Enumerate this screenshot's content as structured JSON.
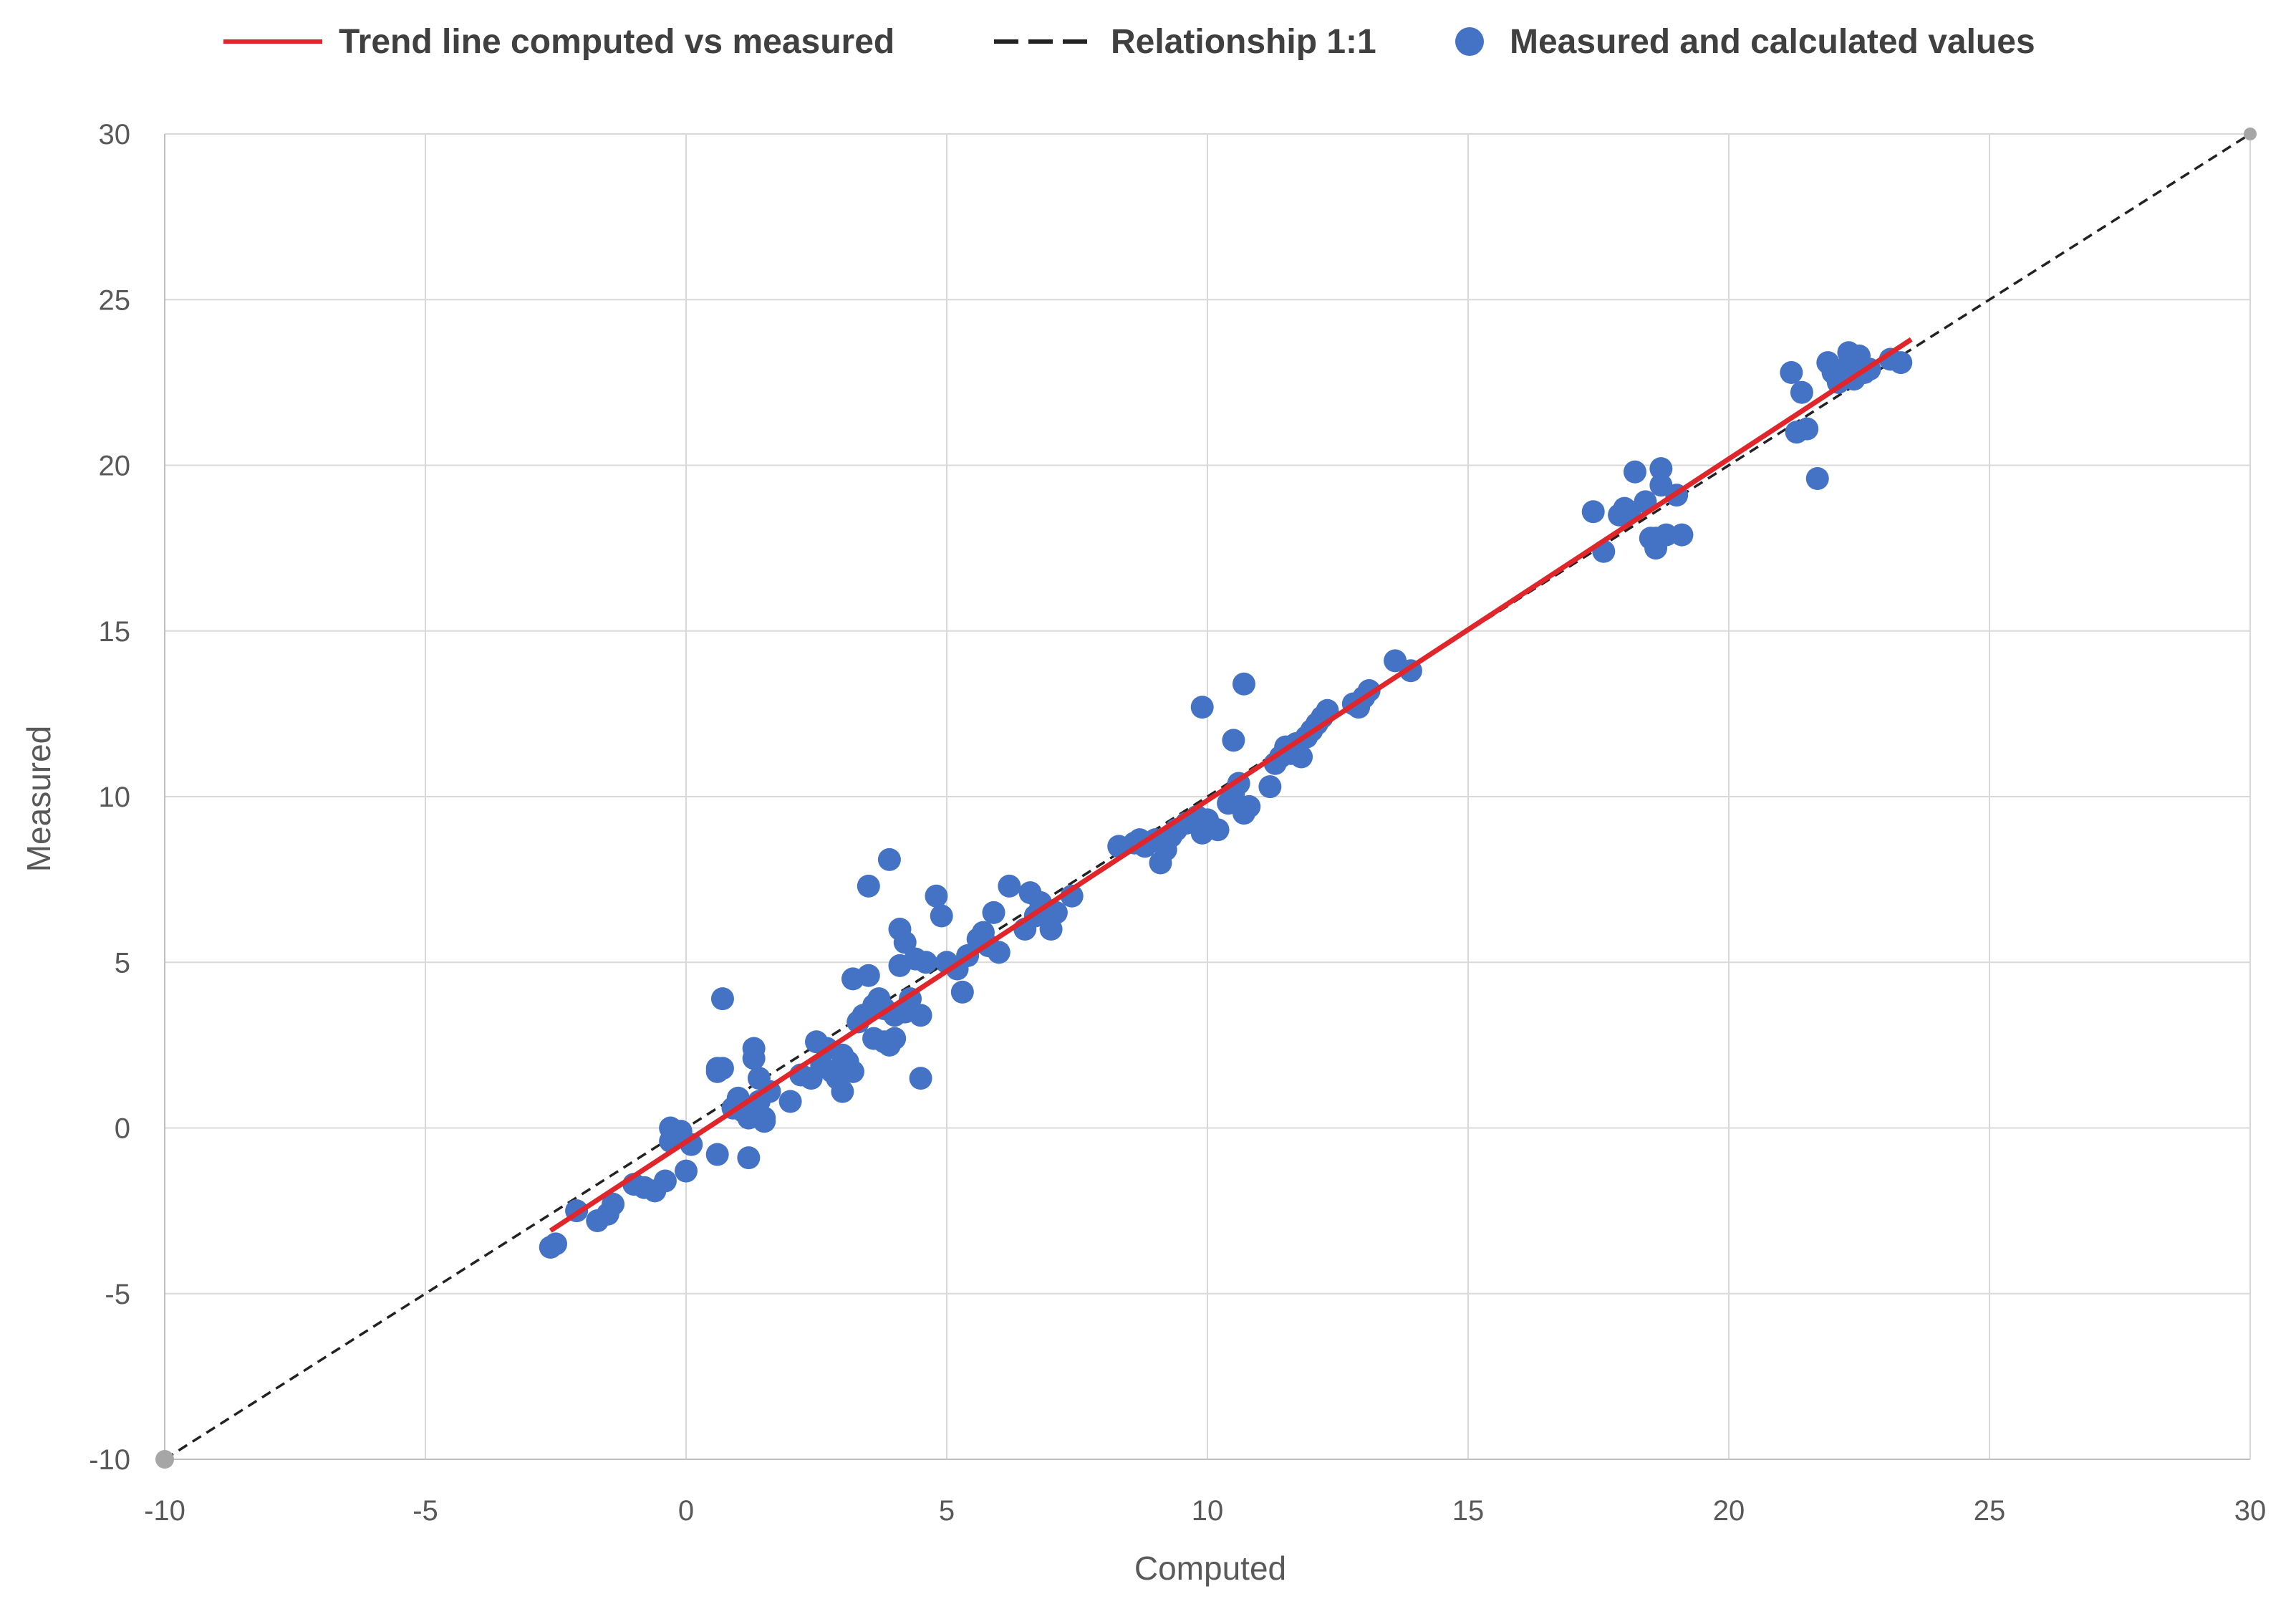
{
  "chart_data": {
    "type": "scatter",
    "title": "",
    "xlabel": "Computed",
    "ylabel": "Measured",
    "xlim": [
      -10,
      30
    ],
    "ylim": [
      -10,
      30
    ],
    "x_ticks": [
      -10,
      -5,
      0,
      5,
      10,
      15,
      20,
      25,
      30
    ],
    "y_ticks": [
      -10,
      -5,
      0,
      5,
      10,
      15,
      20,
      25,
      30
    ],
    "x_tick_labels": [
      "-10",
      "-5",
      "0",
      "5",
      "10",
      "15",
      "20",
      "25",
      "30"
    ],
    "y_tick_labels": [
      "-10",
      "-5",
      "0",
      "5",
      "10",
      "15",
      "20",
      "25",
      "30"
    ],
    "grid": true,
    "legend_position": "top",
    "legend": [
      {
        "label": "Trend line computed vs measured",
        "kind": "line",
        "color": "#e0262b"
      },
      {
        "label": "Relationship 1:1",
        "kind": "dashed",
        "color": "#222222"
      },
      {
        "label": "Measured and calculated values",
        "kind": "marker",
        "color": "#4472c4"
      }
    ],
    "series": [
      {
        "name": "Trend line computed vs measured",
        "kind": "line",
        "color": "#e0262b",
        "x": [
          -2.6,
          23.5
        ],
        "y": [
          -3.1,
          23.8
        ]
      },
      {
        "name": "Relationship 1:1",
        "kind": "dashed",
        "color": "#222222",
        "x": [
          -10,
          30
        ],
        "y": [
          -10,
          30
        ]
      },
      {
        "name": "Measured and calculated values",
        "kind": "scatter",
        "color": "#4472c4",
        "x": [
          -2.6,
          -2.5,
          -2.1,
          -1.7,
          -1.5,
          -1.4,
          -1.0,
          -0.8,
          -0.6,
          -0.4,
          -0.3,
          -0.2,
          -0.1,
          0.0,
          0.1,
          -0.3,
          -0.2,
          0.6,
          0.7,
          0.6,
          0.7,
          0.6,
          0.9,
          1.0,
          1.1,
          1.2,
          1.2,
          1.3,
          1.3,
          1.4,
          1.4,
          1.5,
          1.5,
          1.6,
          2.0,
          2.2,
          2.4,
          2.5,
          2.6,
          2.7,
          2.8,
          2.9,
          3.0,
          3.0,
          3.1,
          3.2,
          3.2,
          3.3,
          3.4,
          3.5,
          3.5,
          3.6,
          3.6,
          3.7,
          3.8,
          3.8,
          3.9,
          3.9,
          4.0,
          4.0,
          4.1,
          4.1,
          4.2,
          4.2,
          4.3,
          4.4,
          4.5,
          4.5,
          4.6,
          4.8,
          4.9,
          5.0,
          5.2,
          5.3,
          5.4,
          5.6,
          5.7,
          5.8,
          5.9,
          6.0,
          6.2,
          6.5,
          6.6,
          6.7,
          6.8,
          7.0,
          7.1,
          7.4,
          8.3,
          8.6,
          8.7,
          8.8,
          9.0,
          9.1,
          9.2,
          9.3,
          9.4,
          9.6,
          9.8,
          9.9,
          10.0,
          10.2,
          10.4,
          10.5,
          10.6,
          10.7,
          10.8,
          9.9,
          10.5,
          10.7,
          11.2,
          11.3,
          11.4,
          11.5,
          11.6,
          11.7,
          11.8,
          11.9,
          12.0,
          12.1,
          12.2,
          12.3,
          12.8,
          12.9,
          13.0,
          13.1,
          13.6,
          13.9,
          17.4,
          17.6,
          17.9,
          18.0,
          18.1,
          18.2,
          18.4,
          18.5,
          18.6,
          18.6,
          18.7,
          18.7,
          18.8,
          19.0,
          19.1,
          21.2,
          21.3,
          21.4,
          21.5,
          21.7,
          21.9,
          22.0,
          22.1,
          22.2,
          22.3,
          22.4,
          22.5,
          22.6,
          22.7,
          23.1,
          23.3
        ],
        "y": [
          -3.6,
          -3.5,
          -2.5,
          -2.8,
          -2.6,
          -2.3,
          -1.7,
          -1.8,
          -1.9,
          -1.6,
          -0.4,
          -0.2,
          -0.1,
          -1.3,
          -0.5,
          0.0,
          -0.3,
          -0.8,
          3.9,
          1.8,
          1.8,
          1.7,
          0.6,
          0.9,
          0.5,
          0.3,
          -0.9,
          2.4,
          2.1,
          1.5,
          0.8,
          0.3,
          0.2,
          1.1,
          0.8,
          1.6,
          1.5,
          2.6,
          1.9,
          2.4,
          1.7,
          1.5,
          2.2,
          1.1,
          2.0,
          4.5,
          1.7,
          3.2,
          3.4,
          4.6,
          7.3,
          3.7,
          2.7,
          3.9,
          2.6,
          3.6,
          8.1,
          2.5,
          3.4,
          2.7,
          6.0,
          4.9,
          5.6,
          3.5,
          3.9,
          5.1,
          3.4,
          1.5,
          5.0,
          7.0,
          6.4,
          5.0,
          4.8,
          4.1,
          5.2,
          5.7,
          5.9,
          5.5,
          6.5,
          5.3,
          7.3,
          6.0,
          7.1,
          6.4,
          6.8,
          6.0,
          6.5,
          7.0,
          8.5,
          8.6,
          8.7,
          8.5,
          8.7,
          8.0,
          8.4,
          8.8,
          9.0,
          9.2,
          9.4,
          8.9,
          9.3,
          9.0,
          9.8,
          10.1,
          10.4,
          9.5,
          9.7,
          12.7,
          11.7,
          13.4,
          10.3,
          11.0,
          11.2,
          11.5,
          11.3,
          11.6,
          11.2,
          11.8,
          12.0,
          12.2,
          12.4,
          12.6,
          12.8,
          12.7,
          13.0,
          13.2,
          14.1,
          13.8,
          18.6,
          17.4,
          18.5,
          18.7,
          18.6,
          19.8,
          18.9,
          17.8,
          17.5,
          17.8,
          19.9,
          19.4,
          17.9,
          19.1,
          17.9,
          22.8,
          21.0,
          22.2,
          21.1,
          19.6,
          23.1,
          22.8,
          22.5,
          22.9,
          23.4,
          22.6,
          23.3,
          22.8,
          22.9,
          23.2,
          23.1
        ]
      }
    ],
    "endpoint_markers": {
      "color": "#a6a6a6",
      "x": [
        -10,
        30
      ],
      "y": [
        -10,
        30
      ]
    }
  }
}
